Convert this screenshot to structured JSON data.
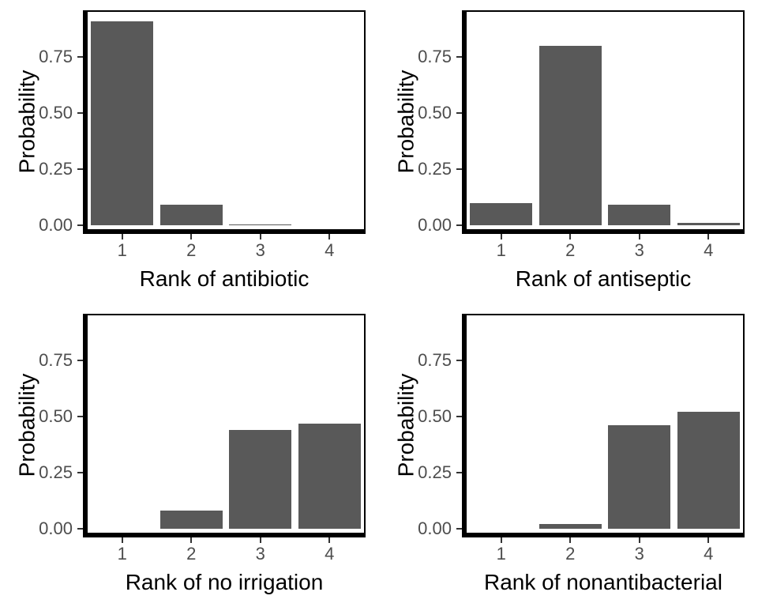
{
  "figure": {
    "description": "2x2 grid of rank probability bar charts",
    "background": "#FFFFFF"
  },
  "colors": {
    "bar": "#595959",
    "panel_border": "#000000",
    "axis_title": "#000000",
    "tick_label": "#4D4D4D",
    "tick_mark": "#333333"
  },
  "chart_data": [
    {
      "type": "bar",
      "title": "",
      "xlabel": "Rank of antibiotic",
      "ylabel": "Probability",
      "categories": [
        "1",
        "2",
        "3",
        "4"
      ],
      "values": [
        0.91,
        0.09,
        0.005,
        0
      ],
      "ytick_values": [
        0,
        0.25,
        0.5,
        0.75
      ],
      "ytick_labels": [
        "0.00",
        "0.25",
        "0.50",
        "0.75"
      ],
      "ylim": [
        0,
        0.955
      ],
      "grid": false,
      "legend": false
    },
    {
      "type": "bar",
      "title": "",
      "xlabel": "Rank of antiseptic",
      "ylabel": "Probability",
      "categories": [
        "1",
        "2",
        "3",
        "4"
      ],
      "values": [
        0.1,
        0.8,
        0.09,
        0.01
      ],
      "ytick_values": [
        0,
        0.25,
        0.5,
        0.75
      ],
      "ytick_labels": [
        "0.00",
        "0.25",
        "0.50",
        "0.75"
      ],
      "ylim": [
        0,
        0.955
      ],
      "grid": false,
      "legend": false
    },
    {
      "type": "bar",
      "title": "",
      "xlabel": "Rank of no irrigation",
      "ylabel": "Probability",
      "categories": [
        "1",
        "2",
        "3",
        "4"
      ],
      "values": [
        0,
        0.08,
        0.44,
        0.47
      ],
      "ytick_values": [
        0,
        0.25,
        0.5,
        0.75
      ],
      "ytick_labels": [
        "0.00",
        "0.25",
        "0.50",
        "0.75"
      ],
      "ylim": [
        0,
        0.955
      ],
      "grid": false,
      "legend": false
    },
    {
      "type": "bar",
      "title": "",
      "xlabel": "Rank of nonantibacterial",
      "ylabel": "Probability",
      "categories": [
        "1",
        "2",
        "3",
        "4"
      ],
      "values": [
        0,
        0.02,
        0.46,
        0.52
      ],
      "ytick_values": [
        0,
        0.25,
        0.5,
        0.75
      ],
      "ytick_labels": [
        "0.00",
        "0.25",
        "0.50",
        "0.75"
      ],
      "ylim": [
        0,
        0.955
      ],
      "grid": false,
      "legend": false
    }
  ]
}
